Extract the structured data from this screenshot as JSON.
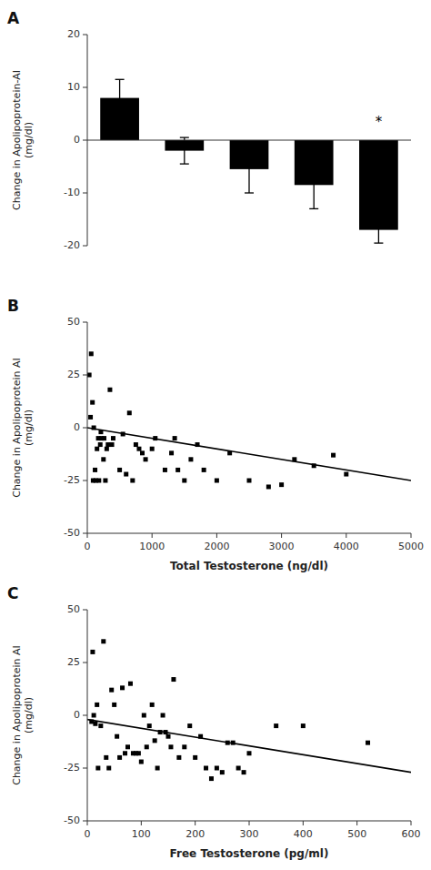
{
  "chart_data": [
    {
      "type": "bar",
      "title": "A",
      "categories": [
        null,
        null,
        null,
        null,
        null
      ],
      "values": [
        8.0,
        -2.0,
        -5.5,
        -8.5,
        -17.0
      ],
      "errors": [
        3.5,
        2.5,
        4.5,
        4.5,
        2.5
      ],
      "color": "#000000",
      "ylim": [
        -20,
        20
      ],
      "yticks": [
        -20,
        -10,
        0,
        10,
        20
      ],
      "ylabel": "Change in Apolipoprotein-AI\n(mg/dl)",
      "annotations": [
        {
          "text": "*",
          "x": 4,
          "y": 2.5
        }
      ]
    },
    {
      "type": "scatter",
      "title": "B",
      "series": [
        {
          "type": "scatter",
          "marker": "square",
          "color": "#000000",
          "x": [
            30,
            50,
            80,
            100,
            120,
            150,
            180,
            200,
            220,
            250,
            280,
            300,
            350,
            500,
            600,
            700,
            800,
            900,
            1000,
            1200,
            1300,
            1500,
            1700,
            2000,
            2500,
            3000,
            3200,
            3500,
            3800,
            4000,
            60,
            90,
            130,
            170,
            210,
            260,
            320,
            380,
            550,
            650,
            750,
            850,
            1050,
            1350,
            1400,
            1600,
            1800,
            2200,
            2800,
            400
          ],
          "values": [
            25,
            5,
            12,
            0,
            -20,
            -10,
            -25,
            -8,
            -5,
            -15,
            -25,
            -10,
            18,
            -20,
            -22,
            -25,
            -10,
            -15,
            -10,
            -20,
            -12,
            -25,
            -8,
            -25,
            -25,
            -27,
            -15,
            -18,
            -13,
            -22,
            35,
            -25,
            -25,
            -5,
            -2,
            -5,
            -8,
            -8,
            -3,
            7,
            -8,
            -12,
            -5,
            -5,
            -20,
            -15,
            -20,
            -12,
            -28,
            -5
          ]
        },
        {
          "type": "line",
          "color": "#000000",
          "x": [
            0,
            5000
          ],
          "values": [
            0,
            -25
          ]
        }
      ],
      "xlim": [
        0,
        5000
      ],
      "ylim": [
        -50,
        50
      ],
      "xticks": [
        0,
        1000,
        2000,
        3000,
        4000,
        5000
      ],
      "yticks": [
        -50,
        -25,
        0,
        25,
        50
      ],
      "xlabel": "Total Testosterone (ng/dl)",
      "ylabel": "Change in Apolipoprotein AI\n(mg/dl)"
    },
    {
      "type": "scatter",
      "title": "C",
      "series": [
        {
          "type": "scatter",
          "marker": "square",
          "color": "#000000",
          "x": [
            10,
            20,
            30,
            40,
            50,
            60,
            70,
            80,
            90,
            100,
            110,
            120,
            130,
            140,
            150,
            160,
            170,
            180,
            190,
            200,
            210,
            220,
            230,
            240,
            250,
            260,
            270,
            280,
            290,
            300,
            350,
            400,
            520,
            15,
            25,
            35,
            45,
            55,
            65,
            75,
            85,
            95,
            105,
            115,
            125,
            135,
            145,
            155,
            8,
            12,
            18
          ],
          "values": [
            30,
            -25,
            35,
            -25,
            5,
            -20,
            -18,
            15,
            -18,
            -22,
            -15,
            5,
            -25,
            0,
            -10,
            17,
            -20,
            -15,
            -5,
            -20,
            -10,
            -25,
            -30,
            -25,
            -27,
            -13,
            -13,
            -25,
            -27,
            -18,
            -5,
            -5,
            -13,
            -4,
            -5,
            -20,
            12,
            -10,
            13,
            -15,
            -18,
            -18,
            0,
            -5,
            -12,
            -8,
            -8,
            -15,
            -3,
            0,
            5
          ]
        },
        {
          "type": "line",
          "color": "#000000",
          "x": [
            0,
            600
          ],
          "values": [
            -2,
            -27
          ]
        }
      ],
      "xlim": [
        0,
        600
      ],
      "ylim": [
        -50,
        50
      ],
      "xticks": [
        0,
        100,
        200,
        300,
        400,
        500,
        600
      ],
      "yticks": [
        -50,
        -25,
        0,
        25,
        50
      ],
      "xlabel": "Free Testosterone (pg/ml)",
      "ylabel": "Change in Apolipoprotein AI\n(mg/dl)"
    }
  ]
}
